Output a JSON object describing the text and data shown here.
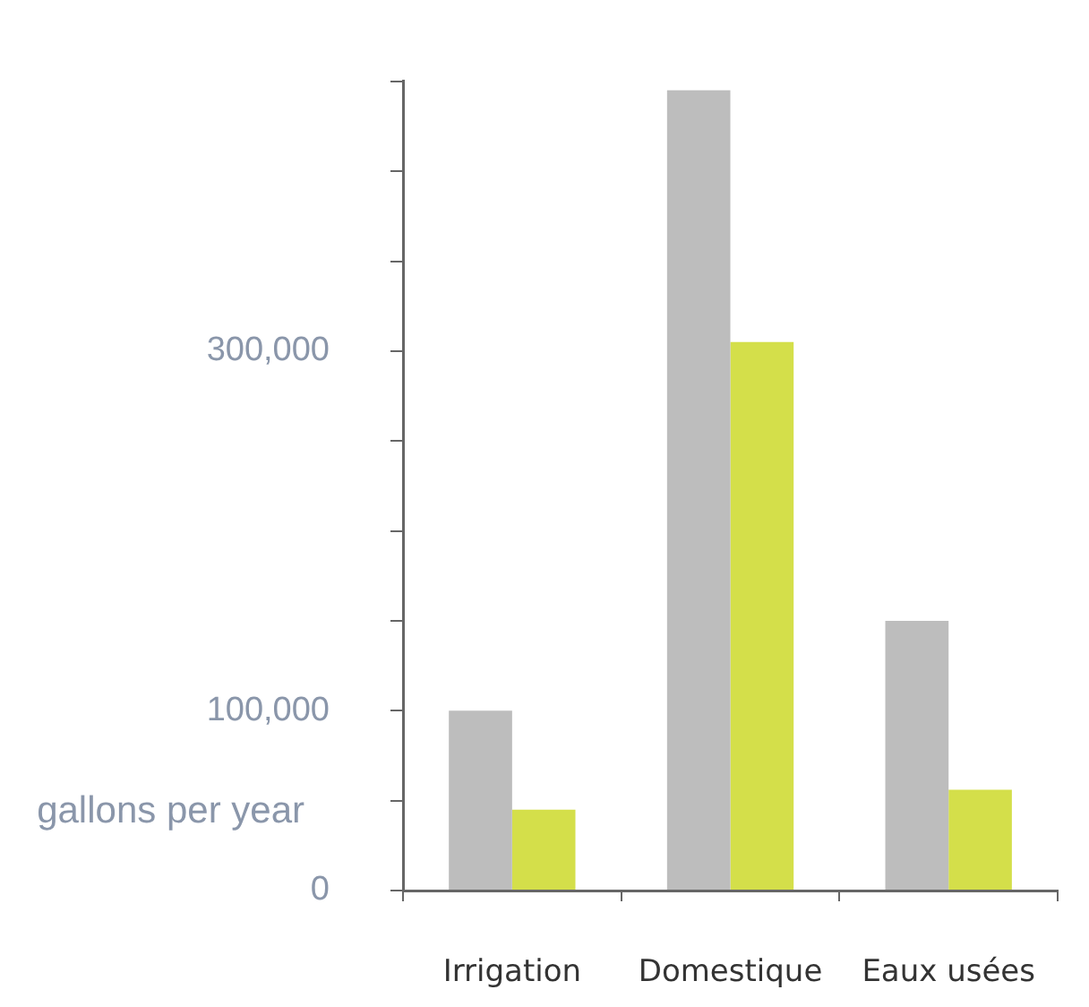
{
  "chart_data": {
    "type": "bar",
    "ylabel": "gallons per year",
    "categories": [
      "Irrigation",
      "Domestique",
      "Eaux usées"
    ],
    "series": [
      {
        "color": "#bdbdbd",
        "values": [
          100000,
          445000,
          150000
        ]
      },
      {
        "color": "#d4df4a",
        "values": [
          45000,
          305000,
          56000
        ]
      }
    ],
    "ylim": [
      0,
      450000
    ],
    "yticks": [
      0,
      {
        "value": 50000,
        "label": null
      },
      {
        "value": 100000,
        "label": "100,000"
      },
      {
        "value": 150000,
        "label": null
      },
      {
        "value": 200000,
        "label": null
      },
      {
        "value": 250000,
        "label": null
      },
      {
        "value": 300000,
        "label": "300,000"
      },
      {
        "value": 350000,
        "label": null
      },
      {
        "value": 400000,
        "label": null
      },
      {
        "value": 450000,
        "label": null
      }
    ],
    "grid": false,
    "legend": false
  }
}
